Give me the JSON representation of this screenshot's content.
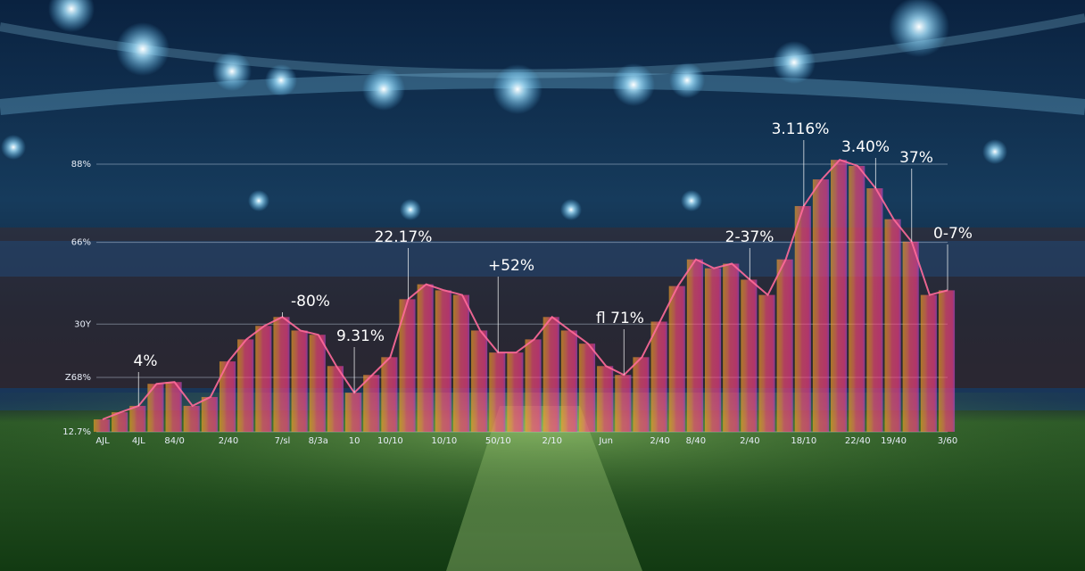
{
  "chart_data": {
    "type": "area",
    "categories": [
      "AJL",
      null,
      "4JL",
      null,
      "84/0",
      null,
      null,
      "2/40",
      null,
      null,
      "7/sl",
      null,
      "8/3a",
      null,
      "10",
      null,
      "10/10",
      null,
      null,
      "10/10",
      null,
      null,
      "50/10",
      null,
      null,
      "2/10",
      null,
      null,
      "Jun",
      null,
      null,
      "2/40",
      null,
      "8/40",
      null,
      null,
      "2/40",
      null,
      null,
      "18/10",
      null,
      null,
      "22/40",
      null,
      "19/40",
      null,
      null,
      "3/60"
    ],
    "values": [
      16.2,
      18.2,
      20,
      26.2,
      26.7,
      20,
      22.5,
      32.5,
      38.7,
      42.5,
      45,
      41.2,
      40,
      31.2,
      23.7,
      28.7,
      33.7,
      50,
      54.2,
      52.5,
      51.2,
      41.2,
      35,
      35,
      38.7,
      45,
      41.2,
      37.5,
      31.2,
      28.7,
      33.7,
      43.7,
      53.7,
      61.2,
      58.7,
      60,
      55.5,
      51.2,
      61.2,
      76.2,
      83.7,
      89.2,
      87.5,
      81.2,
      72.5,
      66.2,
      51.2,
      52.5
    ],
    "ylim": [
      12.7,
      92
    ],
    "yticks": [
      {
        "value": 88,
        "label": "88%"
      },
      {
        "value": 66,
        "label": "66%"
      },
      {
        "value": 43,
        "label": "30Y"
      },
      {
        "value": 28,
        "label": "Z68%"
      },
      {
        "value": 12.7,
        "label": "12.7%"
      }
    ],
    "grid": true,
    "annotations": [
      "3.116%",
      "3.40%",
      "37%",
      "22.17%",
      "2-37%",
      "0-7%",
      "+52%",
      "-80%",
      "9.31%",
      "fl 71%",
      "4%"
    ]
  }
}
